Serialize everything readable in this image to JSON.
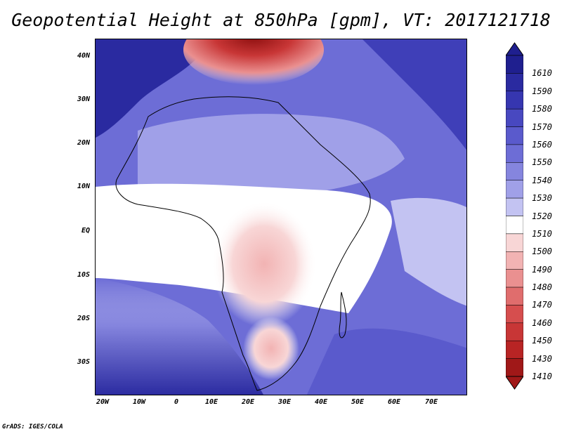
{
  "title": "Geopotential Height at 850hPa [gpm], VT: 2017121718",
  "credit": "GrADS: IGES/COLA",
  "axes": {
    "lat_labels": [
      "40N",
      "30N",
      "20N",
      "10N",
      "EQ",
      "10S",
      "20S",
      "30S"
    ],
    "lon_labels": [
      "20W",
      "10W",
      "0",
      "10E",
      "20E",
      "30E",
      "40E",
      "50E",
      "60E",
      "70E"
    ]
  },
  "colorbar": {
    "levels": [
      "1610",
      "1590",
      "1580",
      "1570",
      "1560",
      "1550",
      "1540",
      "1530",
      "1520",
      "1510",
      "1500",
      "1490",
      "1480",
      "1470",
      "1460",
      "1450",
      "1430",
      "1410"
    ],
    "colors": [
      "#1f1f8f",
      "#2a2aa0",
      "#3636b0",
      "#4848c0",
      "#5a5acc",
      "#6d6dd6",
      "#8585de",
      "#a0a0e8",
      "#c3c3f2",
      "#ffffff",
      "#f8d6d6",
      "#f2b3b3",
      "#ea9090",
      "#e06d6d",
      "#d64e4e",
      "#c83636",
      "#b82424",
      "#a01818"
    ]
  }
}
